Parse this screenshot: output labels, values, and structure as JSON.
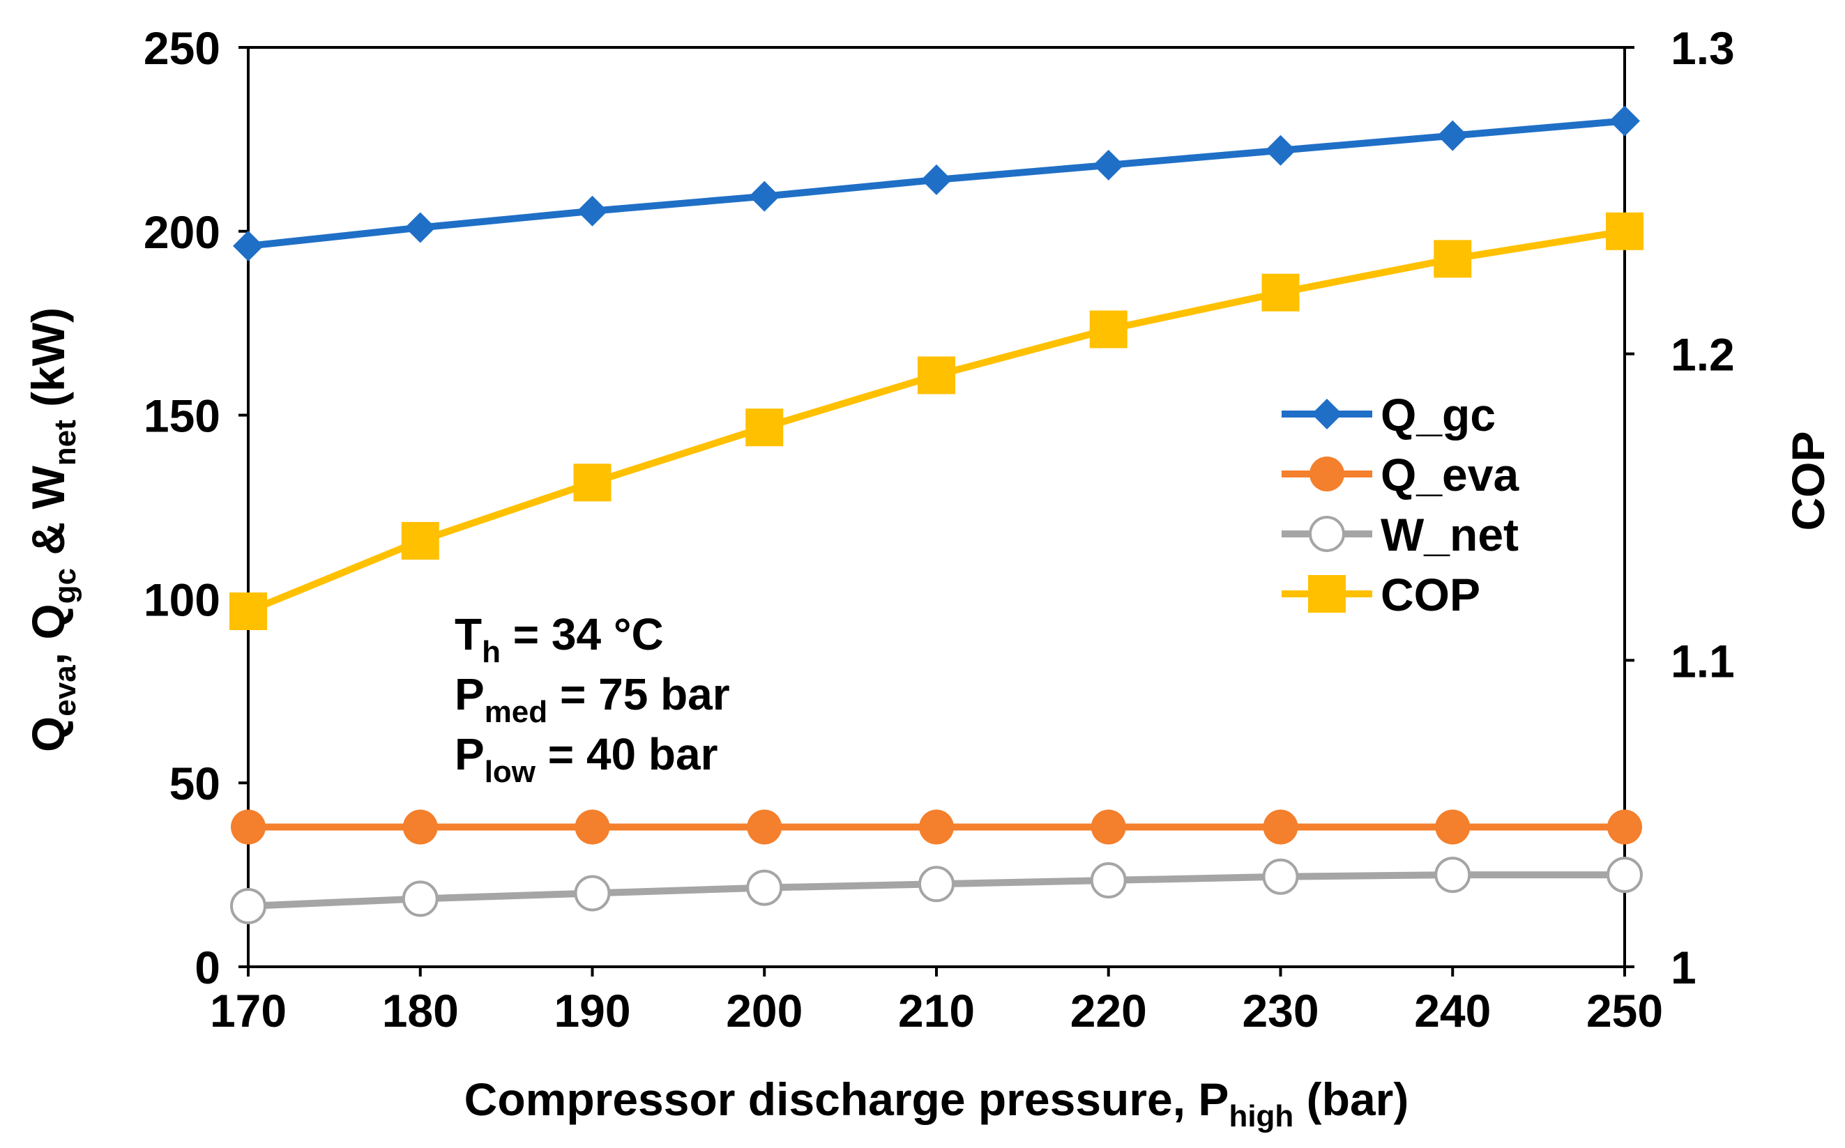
{
  "chart_data": {
    "type": "line",
    "x": [
      170,
      180,
      190,
      200,
      210,
      220,
      230,
      240,
      250
    ],
    "series": [
      {
        "name": "Q_gc",
        "axis": "left",
        "color": "#1f6fc6",
        "marker": "diamond",
        "values": [
          196,
          201,
          205.5,
          209.5,
          214,
          218,
          222,
          226,
          230
        ]
      },
      {
        "name": "Q_eva",
        "axis": "left",
        "color": "#f47f2c",
        "marker": "circle",
        "values": [
          38,
          38,
          38,
          38,
          38,
          38,
          38,
          38,
          38
        ]
      },
      {
        "name": "W_net",
        "axis": "left",
        "color": "#a5a5a5",
        "marker": "open-circle",
        "values": [
          16.5,
          18.5,
          20,
          21.5,
          22.5,
          23.5,
          24.5,
          25,
          25
        ]
      },
      {
        "name": "COP",
        "axis": "right",
        "color": "#ffc000",
        "marker": "square",
        "values": [
          1.116,
          1.139,
          1.158,
          1.176,
          1.193,
          1.208,
          1.22,
          1.231,
          1.24
        ]
      }
    ],
    "x_ticks": [
      "170",
      "180",
      "190",
      "200",
      "210",
      "220",
      "230",
      "240",
      "250"
    ],
    "y_left_ticks": [
      "0",
      "50",
      "100",
      "150",
      "200",
      "250"
    ],
    "y_right_ticks": [
      "1",
      "1.1",
      "1.2",
      "1.3"
    ],
    "xlim": [
      170,
      250
    ],
    "ylim_left": [
      0,
      250
    ],
    "ylim_right": [
      1.0,
      1.3
    ],
    "xlabel": {
      "main": "Compressor discharge pressure, P",
      "sub": "high",
      "tail": " (bar)"
    },
    "ylabel_left": {
      "p1": "Q",
      "p1_sub": "eva",
      "p2": ",  Q",
      "p2_sub": "gc",
      "p3": " & W",
      "p3_sub": "net",
      "p4": " (kW)"
    },
    "ylabel_right": "COP",
    "grid": false,
    "legend_position": "right-middle",
    "annotations": [
      {
        "main": "T",
        "sub": "h",
        "tail": " = 34 °C"
      },
      {
        "main": "P",
        "sub": "med",
        "tail": " = 75 bar"
      },
      {
        "main": "P",
        "sub": "low",
        "tail": " = 40 bar"
      }
    ]
  }
}
